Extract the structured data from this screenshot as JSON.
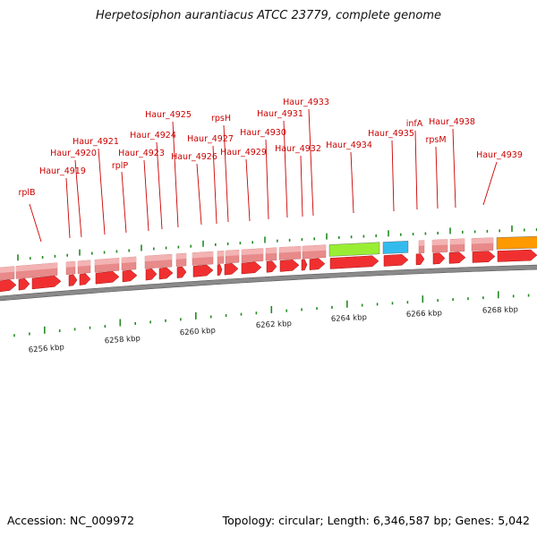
{
  "title": "Herpetosiphon aurantiacus ATCC 23779, complete genome",
  "footer": {
    "accession": "Accession: NC_009972",
    "topology": "Topology: circular; Length: 6,346,587 bp; Genes: 5,042"
  },
  "colors": {
    "gene_label": "#cc0000",
    "gene_fill": "#f03030",
    "cds_fill": "#e88a8a",
    "tick": "#228b22",
    "backbone": "#8a8a8a",
    "rrna_green": "#99ee33",
    "rrna_blue": "#33bbee",
    "orange": "#ff9900"
  },
  "scale_labels": [
    "6256 kbp",
    "6258 kbp",
    "6260 kbp",
    "6262 kbp",
    "6264 kbp",
    "6266 kbp",
    "6268 kbp"
  ],
  "gene_labels": [
    "rplB",
    "Haur_4919",
    "Haur_4920",
    "Haur_4921",
    "rplP",
    "Haur_4923",
    "Haur_4924",
    "Haur_4925",
    "Haur_4926",
    "Haur_4927",
    "rpsH",
    "Haur_4929",
    "Haur_4930",
    "Haur_4931",
    "Haur_4932",
    "Haur_4933",
    "Haur_4934",
    "Haur_4935",
    "infA",
    "rpsM",
    "Haur_4938",
    "Haur_4939"
  ]
}
